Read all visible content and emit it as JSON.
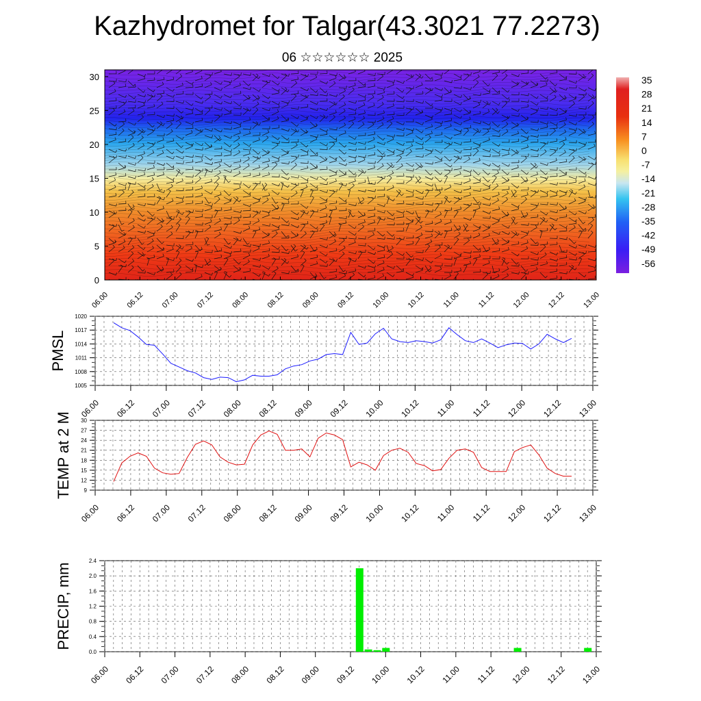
{
  "header": {
    "title": "Kazhydromet for Talgar(43.3021 77.2273)",
    "subtitle": "06 ☆☆☆☆☆☆ 2025"
  },
  "colors": {
    "pmsl_line": "#1a1aff",
    "temp_line": "#e01010",
    "precip_bar": "#00ee00",
    "colorbar": [
      "#7b1fe0",
      "#5a1ef0",
      "#3a1ef5",
      "#2060f5",
      "#1e9ef0",
      "#35c4f0",
      "#88d8f0",
      "#c8e6f0",
      "#f5f0a0",
      "#f8e070",
      "#f8c040",
      "#f89020",
      "#f05818",
      "#e83010",
      "#e02020",
      "#f07070",
      "#f0b0b0"
    ]
  },
  "chart_data": [
    {
      "type": "heatmap",
      "title": "",
      "xlabel": "",
      "ylabel": "",
      "x_ticks": [
        "06.00",
        "06.12",
        "07.00",
        "07.12",
        "08.00",
        "08.12",
        "09.00",
        "09.12",
        "10.00",
        "10.12",
        "11.00",
        "11.12",
        "12.00",
        "12.12",
        "13.00"
      ],
      "y_ticks": [
        "0",
        "5",
        "10",
        "15",
        "20",
        "25",
        "30"
      ],
      "ylim": [
        0,
        31
      ],
      "colorbar_labels": [
        "35",
        "28",
        "21",
        "14",
        "7",
        "0",
        "-7",
        "-14",
        "-21",
        "-28",
        "-35",
        "-42",
        "-49",
        "-56"
      ],
      "overlay": "wind barbs"
    },
    {
      "type": "line",
      "ylabel": "PMSL",
      "ylim": [
        1005,
        1020
      ],
      "y_ticks": [
        "1005",
        "1008",
        "1011",
        "1014",
        "1017",
        "1020"
      ],
      "x_ticks": [
        "06.00",
        "06.12",
        "07.00",
        "07.12",
        "08.00",
        "08.12",
        "09.00",
        "09.12",
        "10.00",
        "10.12",
        "11.00",
        "11.12",
        "12.00",
        "12.12",
        "13.00"
      ],
      "x_hours": [
        0,
        3,
        6,
        9,
        12,
        15,
        18,
        21,
        24,
        27,
        30,
        33,
        36,
        39,
        42,
        45,
        48,
        51,
        54,
        57,
        60,
        63,
        66,
        69,
        72,
        75,
        78,
        81,
        84,
        87,
        90,
        93,
        96,
        99,
        102,
        105,
        108,
        111,
        114,
        117,
        120,
        123,
        126,
        129,
        132,
        135,
        138,
        141,
        144,
        147,
        150,
        153,
        156,
        159,
        162,
        165,
        168
      ],
      "values": [
        1018.6,
        1017.5,
        1016.9,
        1015.5,
        1013.9,
        1013.7,
        1011.8,
        1009.8,
        1009.0,
        1008.2,
        1007.7,
        1006.7,
        1006.3,
        1006.8,
        1006.7,
        1005.8,
        1006.2,
        1007.2,
        1007.0,
        1007.0,
        1007.3,
        1008.6,
        1009.2,
        1009.5,
        1010.3,
        1010.7,
        1011.7,
        1011.9,
        1011.7,
        1016.5,
        1013.9,
        1014.2,
        1016.2,
        1017.4,
        1015.1,
        1014.5,
        1014.3,
        1014.7,
        1014.5,
        1014.2,
        1014.9,
        1017.5,
        1016.0,
        1014.7,
        1014.3,
        1015.1,
        1014.2,
        1013.2,
        1013.8,
        1014.2,
        1014.1,
        1012.9,
        1014.0,
        1016.1,
        1015.1,
        1014.3,
        1015.2
      ]
    },
    {
      "type": "line",
      "ylabel": "TEMP at 2 M",
      "ylim": [
        9,
        30
      ],
      "y_ticks": [
        "9",
        "12",
        "15",
        "18",
        "21",
        "24",
        "27",
        "30"
      ],
      "x_ticks": [
        "06.00",
        "06.12",
        "07.00",
        "07.12",
        "08.00",
        "08.12",
        "09.00",
        "09.12",
        "10.00",
        "10.12",
        "11.00",
        "11.12",
        "12.00",
        "12.12",
        "13.00"
      ],
      "x_hours": [
        0,
        3,
        6,
        9,
        12,
        15,
        18,
        21,
        24,
        27,
        30,
        33,
        36,
        39,
        42,
        45,
        48,
        51,
        54,
        57,
        60,
        63,
        66,
        69,
        72,
        75,
        78,
        81,
        84,
        87,
        90,
        93,
        96,
        99,
        102,
        105,
        108,
        111,
        114,
        117,
        120,
        123,
        126,
        129,
        132,
        135,
        138,
        141,
        144,
        147,
        150,
        153,
        156,
        159,
        162,
        165,
        168
      ],
      "values": [
        11.6,
        17.2,
        19.2,
        20.2,
        19.2,
        15.6,
        14.2,
        13.8,
        14.0,
        18.8,
        22.8,
        23.8,
        22.6,
        19.0,
        17.4,
        16.6,
        16.8,
        22.6,
        25.6,
        26.8,
        25.8,
        21.0,
        21.0,
        21.4,
        19.0,
        24.6,
        26.2,
        25.6,
        24.2,
        16.0,
        17.4,
        16.6,
        15.0,
        19.4,
        21.0,
        21.6,
        20.4,
        17.0,
        16.4,
        14.8,
        15.2,
        18.6,
        21.0,
        21.4,
        20.4,
        15.8,
        14.6,
        14.6,
        14.6,
        20.6,
        21.8,
        22.6,
        19.6,
        15.6,
        14.0,
        13.2,
        13.2
      ]
    },
    {
      "type": "bar",
      "ylabel": "PRECIP, mm",
      "ylim": [
        0,
        2.4
      ],
      "y_ticks": [
        "0.0",
        "0.4",
        "0.8",
        "1.2",
        "1.6",
        "2.0",
        "2.4"
      ],
      "x_ticks": [
        "06.00",
        "06.12",
        "07.00",
        "07.12",
        "08.00",
        "08.12",
        "09.00",
        "09.12",
        "10.00",
        "10.12",
        "11.00",
        "11.12",
        "12.00",
        "12.12",
        "13.00"
      ],
      "bars": [
        {
          "hour": 87,
          "value": 2.2
        },
        {
          "hour": 90,
          "value": 0.06
        },
        {
          "hour": 93,
          "value": 0.04
        },
        {
          "hour": 96,
          "value": 0.1
        },
        {
          "hour": 141,
          "value": 0.1
        },
        {
          "hour": 165,
          "value": 0.1
        }
      ]
    }
  ]
}
